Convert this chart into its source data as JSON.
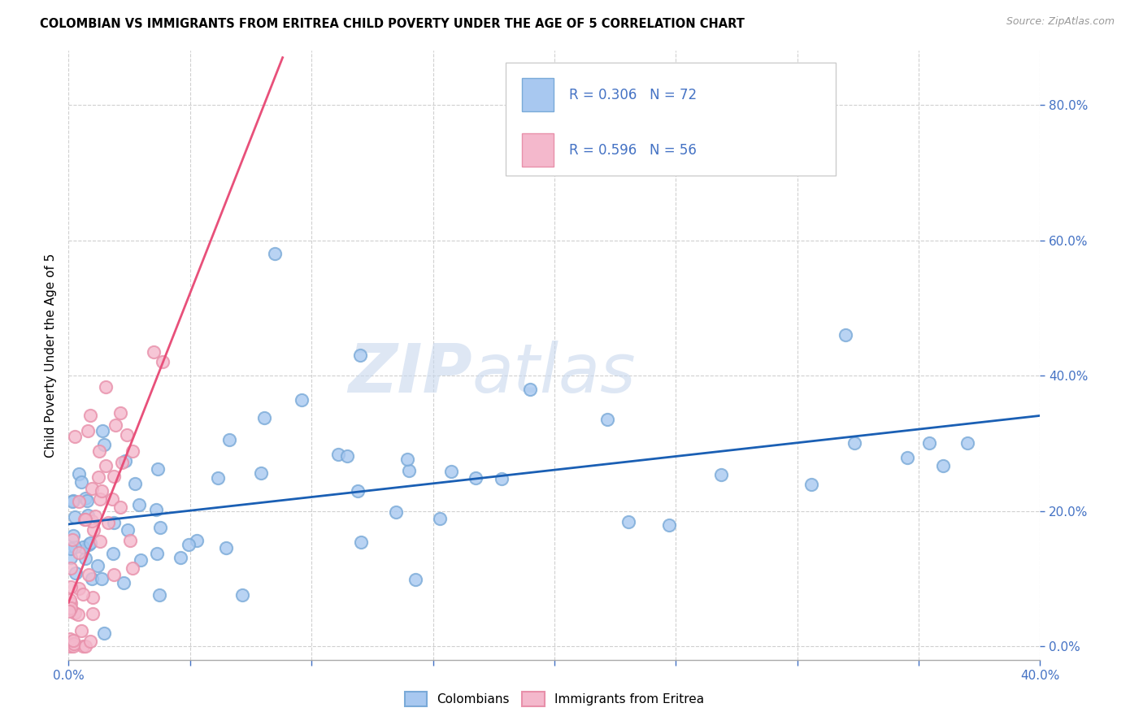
{
  "title": "COLOMBIAN VS IMMIGRANTS FROM ERITREA CHILD POVERTY UNDER THE AGE OF 5 CORRELATION CHART",
  "source": "Source: ZipAtlas.com",
  "ylabel": "Child Poverty Under the Age of 5",
  "xlim": [
    0.0,
    0.4
  ],
  "ylim": [
    -0.02,
    0.88
  ],
  "xtick_positions": [
    0.0,
    0.05,
    0.1,
    0.15,
    0.2,
    0.25,
    0.3,
    0.35,
    0.4
  ],
  "xtick_labels_show": [
    true,
    false,
    false,
    false,
    false,
    false,
    false,
    false,
    true
  ],
  "ytick_positions": [
    0.0,
    0.2,
    0.4,
    0.6,
    0.8
  ],
  "ytick_labels": [
    "0.0%",
    "20.0%",
    "40.0%",
    "60.0%",
    "80.0%"
  ],
  "colombian_fill": "#a8c8f0",
  "colombian_edge": "#7aaad8",
  "eritrea_fill": "#f4b8cc",
  "eritrea_edge": "#e890aa",
  "colombian_line_color": "#1a5fb4",
  "eritrea_line_color": "#e8507a",
  "R_colombian": 0.306,
  "N_colombian": 72,
  "R_eritrea": 0.596,
  "N_eritrea": 56,
  "tick_color": "#4472c4",
  "label_color": "#4472c4",
  "grid_color": "#d0d0d0",
  "legend_box_color": "#e8e8e8",
  "watermark_zip_color": "#c8d8ee",
  "watermark_atlas_color": "#c8d8ee",
  "col_seed": 42,
  "eri_seed": 17
}
